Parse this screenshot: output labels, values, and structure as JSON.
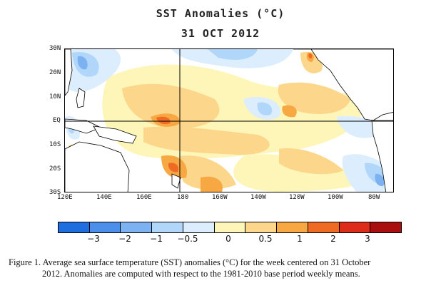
{
  "title": "SST Anomalies (°C)",
  "date": "31 OCT 2012",
  "map": {
    "lat_labels": [
      "30N",
      "20N",
      "10N",
      "EQ",
      "10S",
      "20S",
      "30S"
    ],
    "lon_labels": [
      "120E",
      "140E",
      "160E",
      "180",
      "160W",
      "140W",
      "120W",
      "100W",
      "80W"
    ],
    "colors": {
      "ocean_neutral": "#ffffff",
      "land": "#ffffff",
      "coast": "#000000"
    }
  },
  "colorbar": {
    "labels": [
      "−3",
      "−2",
      "−1",
      "−0.5",
      "0",
      "0.5",
      "1",
      "2",
      "3"
    ],
    "colors": [
      "#1e6ee0",
      "#4c8fea",
      "#7db2f2",
      "#b0d6fa",
      "#dceefd",
      "#fdf6b8",
      "#fcd68a",
      "#f8a843",
      "#ef6a22",
      "#de2c1a",
      "#a90f0f"
    ]
  },
  "caption": {
    "line1": "Figure 1. Average sea surface temperature (SST) anomalies (°C) for the week centered on 31 October",
    "line2": "2012.   Anomalies are computed with respect to the 1981-2010 base period weekly means."
  }
}
